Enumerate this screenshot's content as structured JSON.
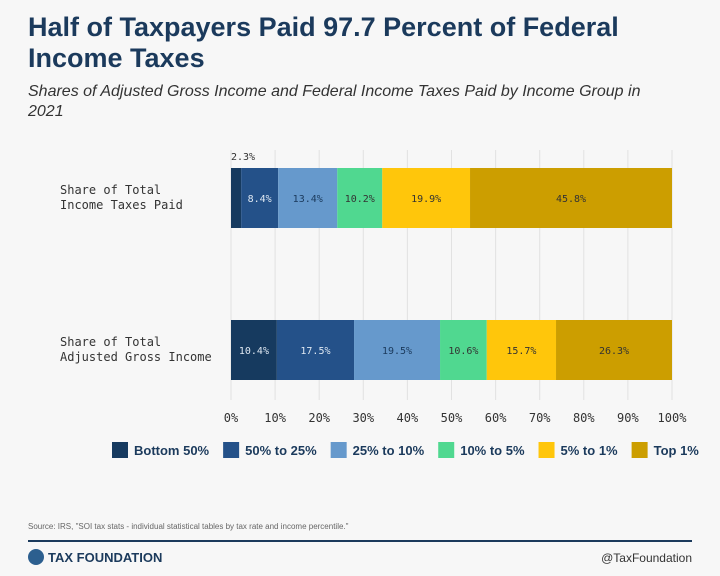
{
  "chart_data": {
    "type": "bar",
    "orientation": "horizontal-stacked",
    "title": "Half of Taxpayers Paid 97.7 Percent of Federal Income Taxes",
    "subtitle": "Shares of Adjusted Gross Income and Federal Income Taxes Paid by Income Group in 2021",
    "categories": [
      "Share of Total Income Taxes Paid",
      "Share of Total Adjusted Gross Income"
    ],
    "category_lines": [
      [
        "Share of Total",
        "Income Taxes Paid"
      ],
      [
        "Share of Total",
        "Adjusted Gross Income"
      ]
    ],
    "series": [
      {
        "name": "Bottom 50%",
        "color": "#163a5f",
        "values": [
          2.3,
          10.4
        ]
      },
      {
        "name": "50% to 25%",
        "color": "#245189",
        "values": [
          8.4,
          17.5
        ]
      },
      {
        "name": "25% to 10%",
        "color": "#6699cc",
        "values": [
          13.4,
          19.5
        ]
      },
      {
        "name": "10% to 5%",
        "color": "#50d890",
        "values": [
          10.2,
          10.6
        ]
      },
      {
        "name": "5% to 1%",
        "color": "#ffc60b",
        "values": [
          19.9,
          15.7
        ]
      },
      {
        "name": "Top 1%",
        "color": "#cc9e00",
        "values": [
          45.8,
          26.3
        ]
      }
    ],
    "xlim": [
      0,
      100
    ],
    "xticks": [
      "0%",
      "10%",
      "20%",
      "30%",
      "40%",
      "50%",
      "60%",
      "70%",
      "80%",
      "90%",
      "100%"
    ],
    "grid": true,
    "legend": "bottom"
  },
  "footer": {
    "source": "Source: IRS, \"SOI tax stats - individual statistical tables by tax rate and income percentile.\"",
    "logo": "TAX FOUNDATION",
    "handle": "@TaxFoundation"
  }
}
